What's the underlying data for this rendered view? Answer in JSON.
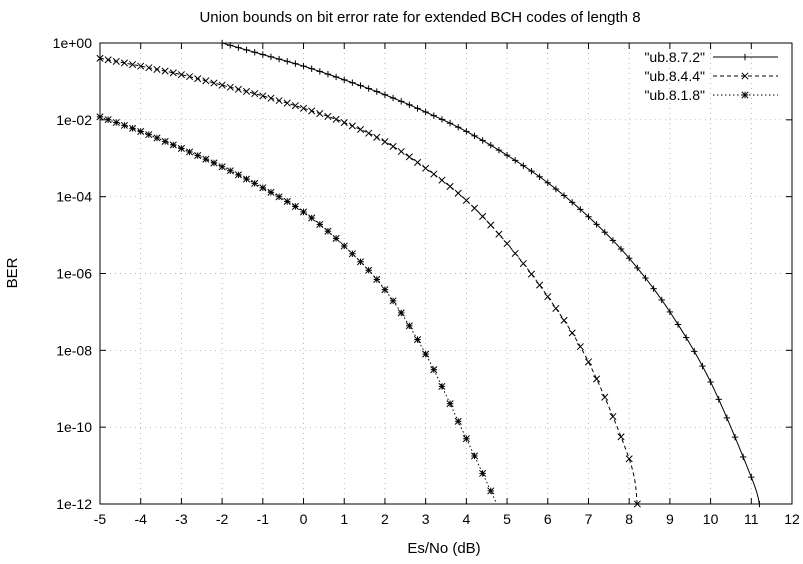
{
  "chart_data": {
    "type": "line",
    "title": "Union bounds on bit error rate for extended BCH codes of length 8",
    "xlabel": "Es/No (dB)",
    "ylabel": "BER",
    "xlim": [
      -5,
      12
    ],
    "ylim": [
      1e-12,
      1
    ],
    "yscale": "log",
    "grid": true,
    "legend_position": "top-right",
    "x_ticks": [
      "-5",
      "-4",
      "-3",
      "-2",
      "-1",
      "0",
      "1",
      "2",
      "3",
      "4",
      "5",
      "6",
      "7",
      "8",
      "9",
      "10",
      "11",
      "12"
    ],
    "y_ticks": [
      "1e+00",
      "1e-02",
      "1e-04",
      "1e-06",
      "1e-08",
      "1e-10",
      "1e-12"
    ],
    "series": [
      {
        "name": "\"ub.8.7.2\"",
        "marker": "plus",
        "dash": "solid",
        "x": [
          -2,
          -1,
          0,
          1,
          2,
          3,
          4,
          5,
          6,
          7,
          8,
          9,
          10,
          11,
          11.2
        ],
        "y": [
          1.0,
          0.5,
          0.25,
          0.11,
          0.045,
          0.016,
          0.005,
          0.0012,
          0.00023,
          3e-05,
          2.5e-06,
          1e-07,
          1.5e-09,
          5e-12,
          1e-12
        ]
      },
      {
        "name": "\"ub.8.4.4\"",
        "marker": "cross",
        "dash": "dashed",
        "x": [
          -5,
          -4,
          -3,
          -2,
          -1,
          0,
          1,
          2,
          3,
          4,
          5,
          6,
          7,
          8,
          8.2
        ],
        "y": [
          0.4,
          0.25,
          0.15,
          0.08,
          0.042,
          0.02,
          0.0085,
          0.0027,
          0.00055,
          8e-05,
          6e-06,
          2.5e-07,
          5e-09,
          1.5e-11,
          1e-12
        ]
      },
      {
        "name": "\"ub.8.1.8\"",
        "marker": "star",
        "dash": "dotted",
        "x": [
          -5,
          -4,
          -3,
          -2,
          -1,
          0,
          1,
          2,
          3,
          4,
          4.75
        ],
        "y": [
          0.012,
          0.005,
          0.0018,
          0.0006,
          0.00017,
          4e-05,
          5.2e-06,
          3.8e-07,
          8e-09,
          5e-11,
          1e-12
        ]
      }
    ]
  }
}
